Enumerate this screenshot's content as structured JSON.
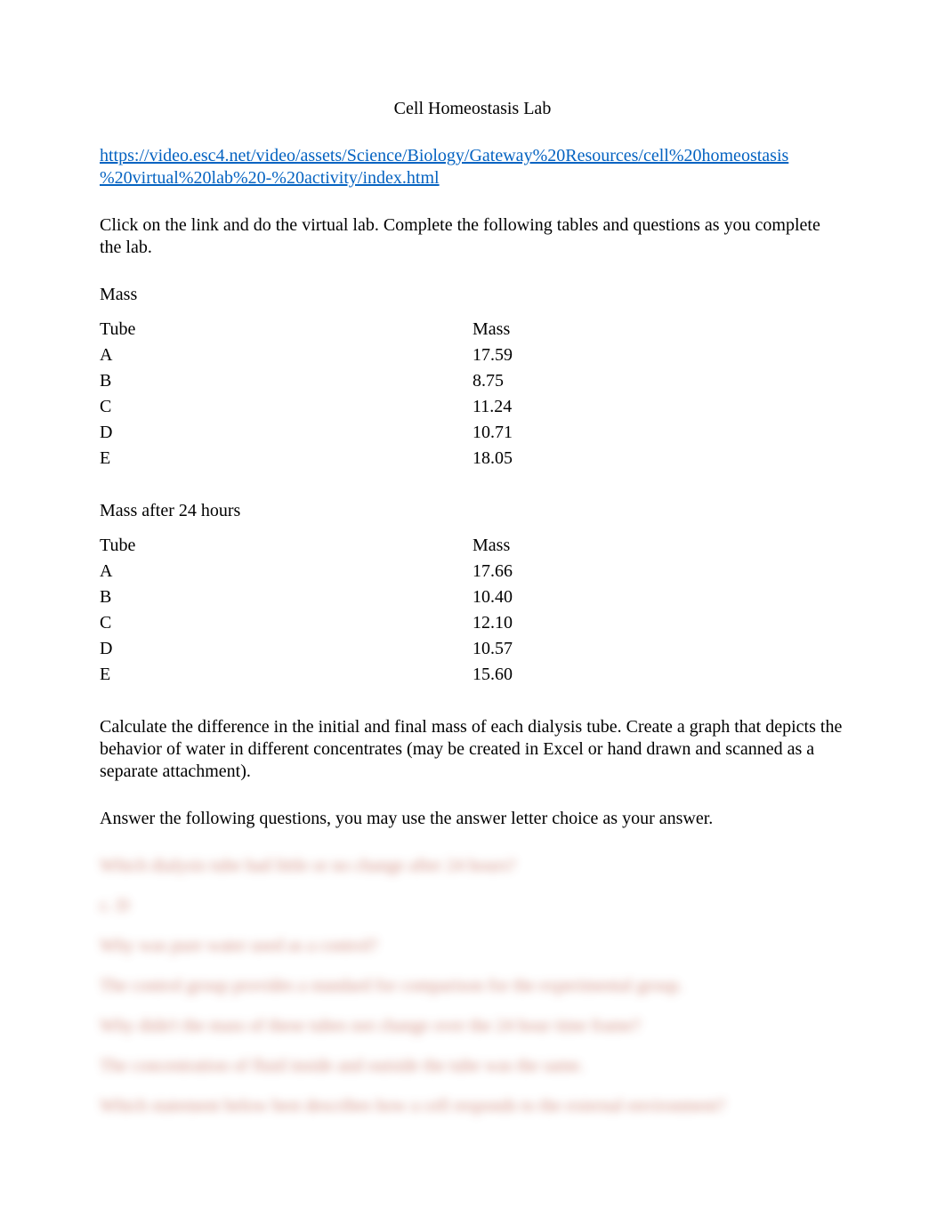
{
  "title": "Cell Homeostasis Lab",
  "link_line1": "https://video.esc4.net/video/assets/Science/Biology/Gateway%20Resources/cell%20homeostasis",
  "link_line2": "%20virtual%20lab%20-%20activity/index.html",
  "instructions": "Click on the link and do the virtual lab. Complete the following tables and questions as you complete the lab.",
  "mass_section": {
    "label": "Mass",
    "header_tube": "Tube",
    "header_mass": "Mass",
    "rows": [
      {
        "tube": "A",
        "mass": "17.59"
      },
      {
        "tube": "B",
        "mass": "8.75"
      },
      {
        "tube": "C",
        "mass": "11.24"
      },
      {
        "tube": "D",
        "mass": "10.71"
      },
      {
        "tube": "E",
        "mass": "18.05"
      }
    ]
  },
  "mass_after_section": {
    "label": "Mass after 24 hours",
    "header_tube": "Tube",
    "header_mass": "Mass",
    "rows": [
      {
        "tube": "A",
        "mass": "17.66"
      },
      {
        "tube": "B",
        "mass": "10.40"
      },
      {
        "tube": "C",
        "mass": "12.10"
      },
      {
        "tube": "D",
        "mass": "10.57"
      },
      {
        "tube": "E",
        "mass": "15.60"
      }
    ]
  },
  "calc_para": "Calculate the difference in the initial and final mass of each dialysis tube.   Create a graph that depicts the behavior of water in different concentrates (may be created in Excel or hand drawn and scanned as a separate attachment).",
  "answer_para": "Answer the following questions, you may use the answer letter choice as your answer.",
  "blurred": {
    "l1": "Which dialysis tube had little or no change after 24 hours?",
    "l2": "c. D",
    "l3": "Why was pure water used as a control?",
    "l4": "The control group provides a standard for comparison for the experimental group.",
    "l5": "Why didn't the mass of these tubes not change over the 24 hour time frame?",
    "l6": "The concentration of fluid inside and outside the tube was the same.",
    "l7": "Which statement below best describes how a cell responds to the external environment?"
  },
  "colors": {
    "link_color": "#0563c1",
    "text_color": "#000000",
    "background": "#ffffff",
    "blurred_color": "#c97a6a"
  },
  "typography": {
    "base_fontsize": 20,
    "font_family": "Times New Roman"
  }
}
